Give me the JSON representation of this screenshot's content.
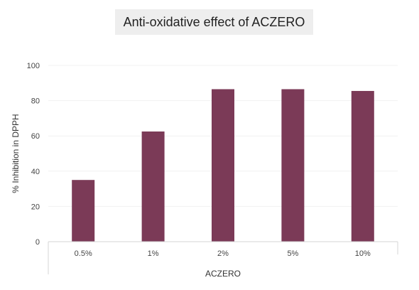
{
  "chart_data": {
    "type": "bar",
    "title": "Anti-oxidative effect of ACZERO",
    "xlabel": "ACZERO",
    "ylabel": "% Inhibition in DPPH",
    "categories": [
      "0.5%",
      "1%",
      "2%",
      "5%",
      "10%"
    ],
    "values": [
      35,
      62.5,
      86.5,
      86.5,
      85.5
    ],
    "ylim": [
      0,
      100
    ],
    "yticks": [
      0,
      20,
      40,
      60,
      80,
      100
    ],
    "grid": true,
    "legend": "none",
    "colors": {
      "bar": "#7b3a57",
      "title_bg": "#eeeeee",
      "grid": "#f1f1f1",
      "axis": "#d6d6d6"
    }
  }
}
